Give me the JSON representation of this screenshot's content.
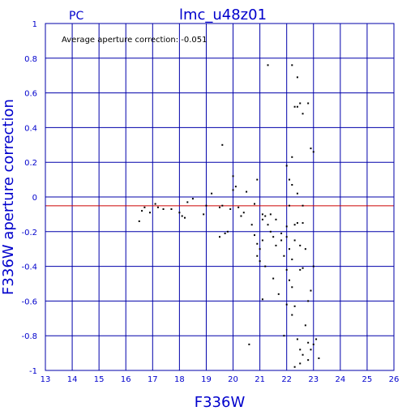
{
  "header": {
    "left_label": "PC",
    "title": "lmc_u48z01"
  },
  "chart_data": {
    "type": "scatter",
    "title": "lmc_u48z01",
    "xlabel": "F336W",
    "ylabel": "F336W aperture correction",
    "xlim": [
      13,
      26
    ],
    "ylim": [
      -1,
      1
    ],
    "x_ticks": [
      "13",
      "14",
      "15",
      "16",
      "17",
      "18",
      "19",
      "20",
      "21",
      "22",
      "23",
      "24",
      "25",
      "26"
    ],
    "y_ticks": [
      "-1",
      "-0.8",
      "-0.6",
      "-0.4",
      "-0.2",
      "0",
      "0.2",
      "0.4",
      "0.6",
      "0.8",
      "1"
    ],
    "grid": true,
    "annotation": "Average aperture correction: -0.051",
    "reference_line": {
      "y": -0.051,
      "color": "#cc0000"
    },
    "colors": {
      "axes": "#0000aa",
      "grid": "#0000aa",
      "points": "#000000",
      "text": "#0000cc"
    },
    "points": [
      [
        16.5,
        -0.14
      ],
      [
        16.6,
        -0.08
      ],
      [
        16.7,
        -0.06
      ],
      [
        16.9,
        -0.09
      ],
      [
        17.1,
        -0.04
      ],
      [
        17.2,
        -0.06
      ],
      [
        17.4,
        -0.07
      ],
      [
        17.7,
        -0.07
      ],
      [
        18.1,
        -0.11
      ],
      [
        18.2,
        -0.12
      ],
      [
        18.3,
        -0.03
      ],
      [
        18.5,
        -0.01
      ],
      [
        18.9,
        -0.1
      ],
      [
        19.0,
        -0.05
      ],
      [
        19.2,
        0.02
      ],
      [
        19.5,
        -0.23
      ],
      [
        19.5,
        -0.06
      ],
      [
        19.6,
        -0.05
      ],
      [
        19.6,
        0.3
      ],
      [
        19.8,
        -0.2
      ],
      [
        19.9,
        -0.07
      ],
      [
        20.0,
        0.12
      ],
      [
        20.0,
        0.04
      ],
      [
        20.1,
        0.06
      ],
      [
        20.2,
        -0.06
      ],
      [
        20.3,
        -0.11
      ],
      [
        20.4,
        -0.09
      ],
      [
        20.5,
        0.03
      ],
      [
        20.7,
        -0.16
      ],
      [
        20.8,
        -0.22
      ],
      [
        20.8,
        -0.04
      ],
      [
        20.9,
        0.1
      ],
      [
        20.9,
        -0.27
      ],
      [
        20.9,
        -0.34
      ],
      [
        21.0,
        -0.3
      ],
      [
        21.0,
        -0.37
      ],
      [
        21.1,
        -0.1
      ],
      [
        21.1,
        -0.13
      ],
      [
        21.1,
        -0.25
      ],
      [
        21.1,
        -0.59
      ],
      [
        21.2,
        -0.4
      ],
      [
        21.2,
        -0.11
      ],
      [
        21.3,
        0.76
      ],
      [
        21.3,
        -0.16
      ],
      [
        21.4,
        -0.2
      ],
      [
        21.4,
        -0.1
      ],
      [
        21.5,
        -0.47
      ],
      [
        21.6,
        -0.28
      ],
      [
        21.6,
        -0.13
      ],
      [
        21.7,
        -0.56
      ],
      [
        21.8,
        -0.21
      ],
      [
        21.8,
        -0.25
      ],
      [
        21.9,
        -0.8
      ],
      [
        21.9,
        -0.34
      ],
      [
        22.0,
        0.18
      ],
      [
        22.0,
        -0.17
      ],
      [
        22.0,
        -0.42
      ],
      [
        22.0,
        -0.62
      ],
      [
        22.1,
        0.1
      ],
      [
        22.1,
        -0.05
      ],
      [
        22.1,
        -0.3
      ],
      [
        22.1,
        -0.48
      ],
      [
        22.2,
        0.76
      ],
      [
        22.2,
        0.23
      ],
      [
        22.2,
        0.07
      ],
      [
        22.2,
        -0.36
      ],
      [
        22.2,
        -0.52
      ],
      [
        22.2,
        -0.68
      ],
      [
        22.3,
        0.52
      ],
      [
        22.3,
        -0.16
      ],
      [
        22.3,
        -0.25
      ],
      [
        22.3,
        -0.63
      ],
      [
        22.3,
        -0.98
      ],
      [
        22.4,
        0.69
      ],
      [
        22.4,
        0.52
      ],
      [
        22.4,
        0.02
      ],
      [
        22.4,
        -0.15
      ],
      [
        22.4,
        -0.82
      ],
      [
        22.5,
        0.54
      ],
      [
        22.5,
        -0.28
      ],
      [
        22.5,
        -0.42
      ],
      [
        22.5,
        -0.88
      ],
      [
        22.5,
        -0.96
      ],
      [
        22.6,
        0.48
      ],
      [
        22.6,
        -0.05
      ],
      [
        22.6,
        -0.15
      ],
      [
        22.6,
        -0.41
      ],
      [
        22.6,
        -0.91
      ],
      [
        22.7,
        -0.74
      ],
      [
        22.8,
        0.54
      ],
      [
        22.8,
        -0.6
      ],
      [
        22.8,
        -0.84
      ],
      [
        22.8,
        -0.94
      ],
      [
        22.9,
        0.28
      ],
      [
        22.9,
        -0.54
      ],
      [
        22.9,
        -0.88
      ],
      [
        23.0,
        0.26
      ],
      [
        23.0,
        -0.4
      ],
      [
        23.0,
        -0.85
      ],
      [
        23.1,
        -0.82
      ],
      [
        23.2,
        -0.93
      ],
      [
        22.7,
        -0.3
      ],
      [
        22.0,
        -0.23
      ],
      [
        20.6,
        -0.85
      ],
      [
        19.7,
        -0.21
      ],
      [
        18.0,
        -0.09
      ],
      [
        21.5,
        -0.23
      ]
    ]
  }
}
